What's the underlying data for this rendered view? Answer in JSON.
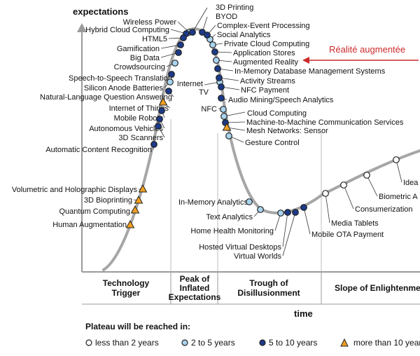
{
  "chart_data": {
    "type": "scatter",
    "title": "",
    "ylabel": "expectations",
    "xlabel": "time",
    "annotation": "Réalité augmentée",
    "phases": [
      "Technology Trigger",
      "Peak of Inflated Expectations",
      "Trough of Disillusionment",
      "Slope of Enlightenment"
    ],
    "legend": {
      "title": "Plateau will be reached in:",
      "items": [
        {
          "label": "less than 2 years",
          "marker": "white-circle"
        },
        {
          "label": "2 to 5 years",
          "marker": "lightblue-circle"
        },
        {
          "label": "5 to 10 years",
          "marker": "darkblue-circle"
        },
        {
          "label": "more than 10 years",
          "marker": "orange-triangle"
        }
      ]
    },
    "colors": {
      "curve": "#a6a6a6",
      "white": "#ffffff",
      "lightblue": "#a9d4ee",
      "darkblue": "#1c3a87",
      "orange": "#f0a022",
      "annotation": "#cc2a2a"
    },
    "series": [
      {
        "name": "less than 2 years",
        "values": [
          {
            "label": "Media Tablets",
            "phase": "Slope of Enlightenment"
          },
          {
            "label": "Consumerization",
            "phase": "Slope of Enlightenment"
          },
          {
            "label": "Biometric A",
            "phase": "Slope of Enlightenment"
          },
          {
            "label": "Idea",
            "phase": "Slope of Enlightenment"
          }
        ]
      },
      {
        "name": "2 to 5 years",
        "values": [
          {
            "label": "Wireless Power",
            "phase": "Peak of Inflated Expectations"
          },
          {
            "label": "Social Analytics",
            "phase": "Peak of Inflated Expectations"
          },
          {
            "label": "Private Cloud Computing",
            "phase": "Peak of Inflated Expectations"
          },
          {
            "label": "Augmented Reality",
            "phase": "Peak of Inflated Expectations"
          },
          {
            "label": "Crowdsourcing",
            "phase": "Technology Trigger"
          },
          {
            "label": "Silicon Anode Batteries",
            "phase": "Technology Trigger"
          },
          {
            "label": "Internet TV",
            "phase": "Trough of Disillusionment"
          },
          {
            "label": "NFC",
            "phase": "Trough of Disillusionment"
          },
          {
            "label": "Cloud Computing",
            "phase": "Trough of Disillusionment"
          },
          {
            "label": "Gesture Control",
            "phase": "Trough of Disillusionment"
          },
          {
            "label": "In-Memory Analytics",
            "phase": "Trough of Disillusionment"
          },
          {
            "label": "Text Analytics",
            "phase": "Trough of Disillusionment"
          },
          {
            "label": "Home Health Monitoring",
            "phase": "Trough of Disillusionment"
          }
        ]
      },
      {
        "name": "5 to 10 years",
        "values": [
          {
            "label": "3D Printing",
            "phase": "Peak of Inflated Expectations"
          },
          {
            "label": "BYOD",
            "phase": "Peak of Inflated Expectations"
          },
          {
            "label": "Hybrid Cloud Computing",
            "phase": "Peak of Inflated Expectations"
          },
          {
            "label": "HTML5",
            "phase": "Peak of Inflated Expectations"
          },
          {
            "label": "Complex-Event Processing",
            "phase": "Peak of Inflated Expectations"
          },
          {
            "label": "Gamification",
            "phase": "Peak of Inflated Expectations"
          },
          {
            "label": "Big Data",
            "phase": "Peak of Inflated Expectations"
          },
          {
            "label": "Application Stores",
            "phase": "Peak of Inflated Expectations"
          },
          {
            "label": "In-Memory Database Management Systems",
            "phase": "Peak of Inflated Expectations"
          },
          {
            "label": "Speech-to-Speech Translation",
            "phase": "Technology Trigger"
          },
          {
            "label": "Natural-Language Question Answering",
            "phase": "Technology Trigger"
          },
          {
            "label": "Activity Streams",
            "phase": "Peak of Inflated Expectations"
          },
          {
            "label": "NFC Payment",
            "phase": "Peak of Inflated Expectations"
          },
          {
            "label": "Audio Mining/Speech Analytics",
            "phase": "Trough of Disillusionment"
          },
          {
            "label": "Mobile Robots",
            "phase": "Technology Trigger"
          },
          {
            "label": "Autonomous Vehicles",
            "phase": "Technology Trigger"
          },
          {
            "label": "3D Scanners",
            "phase": "Technology Trigger"
          },
          {
            "label": "Automatic Content Recognition",
            "phase": "Technology Trigger"
          },
          {
            "label": "Machine-to-Machine Communication Services",
            "phase": "Trough of Disillusionment"
          },
          {
            "label": "Hosted Virtual Desktops",
            "phase": "Trough of Disillusionment"
          },
          {
            "label": "Virtual Worlds",
            "phase": "Trough of Disillusionment"
          },
          {
            "label": "Mobile OTA Payment",
            "phase": "Trough of Disillusionment"
          }
        ]
      },
      {
        "name": "more than 10 years",
        "values": [
          {
            "label": "Internet of Things",
            "phase": "Technology Trigger"
          },
          {
            "label": "Mesh Networks: Sensor",
            "phase": "Trough of Disillusionment"
          },
          {
            "label": "Volumetric and Holographic Displays",
            "phase": "Technology Trigger"
          },
          {
            "label": "3D Bioprinting",
            "phase": "Technology Trigger"
          },
          {
            "label": "Quantum Computing",
            "phase": "Technology Trigger"
          },
          {
            "label": "Human Augmentation",
            "phase": "Technology Trigger"
          }
        ]
      }
    ]
  }
}
